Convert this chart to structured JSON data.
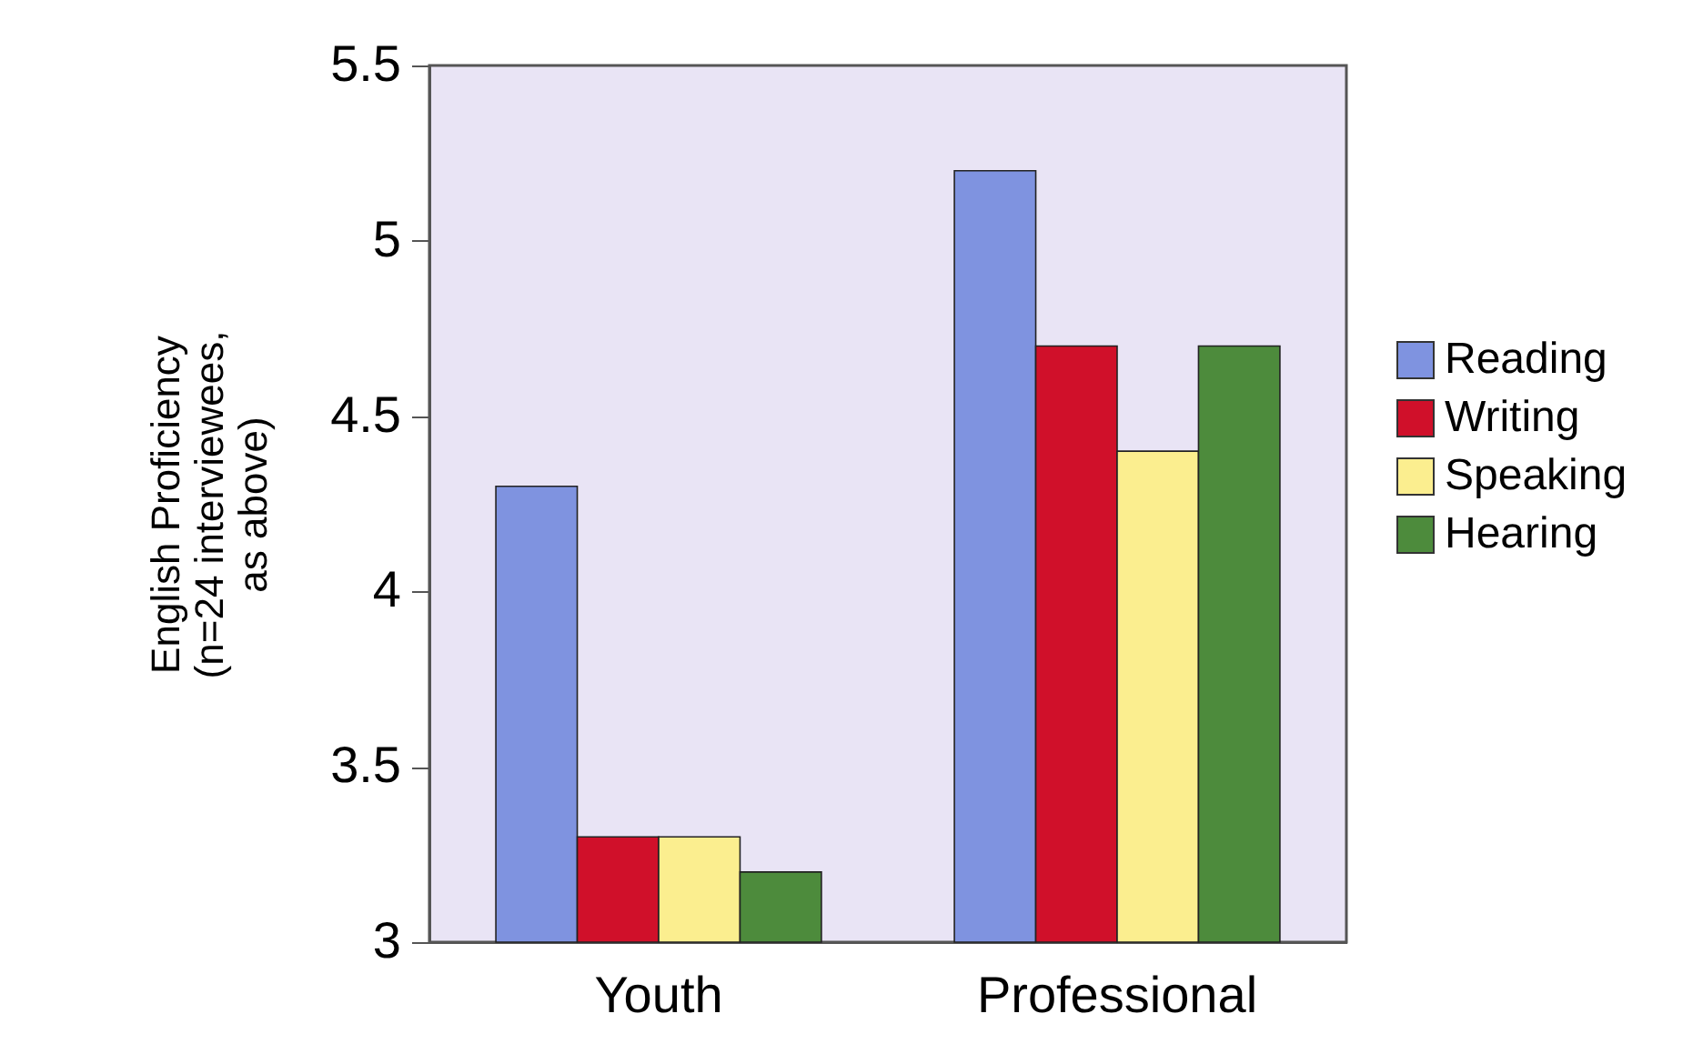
{
  "chart_data": {
    "type": "bar",
    "ylabel": "English Proficiency\n(n=24 interviewees,\nas above)",
    "categories": [
      "Youth",
      "Professional"
    ],
    "series": [
      {
        "name": "Reading",
        "color": "#7f93e0",
        "values": [
          4.3,
          5.2
        ]
      },
      {
        "name": "Writing",
        "color": "#d0102a",
        "values": [
          3.3,
          4.7
        ]
      },
      {
        "name": "Speaking",
        "color": "#fbee8f",
        "values": [
          3.3,
          4.4
        ]
      },
      {
        "name": "Hearing",
        "color": "#4d8b3c",
        "values": [
          3.2,
          4.7
        ]
      }
    ],
    "ylim": [
      3,
      5.5
    ],
    "yticks": [
      3,
      3.5,
      4,
      4.5,
      5,
      5.5
    ],
    "grid": false,
    "legend": "right"
  }
}
